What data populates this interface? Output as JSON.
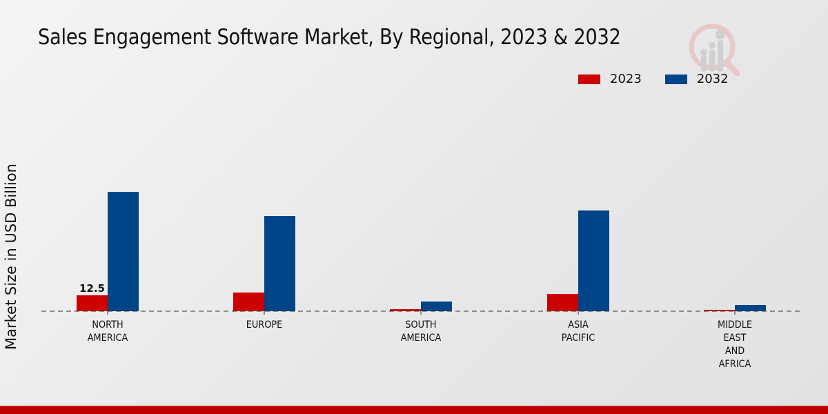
{
  "chart_data": {
    "type": "bar",
    "title": "Sales Engagement Software Market, By Regional, 2023 & 2032",
    "xlabel": "",
    "ylabel": "Market Size in USD Billion",
    "categories": [
      [
        "NORTH",
        "AMERICA"
      ],
      [
        "EUROPE"
      ],
      [
        "SOUTH",
        "AMERICA"
      ],
      [
        "ASIA",
        "PACIFIC"
      ],
      [
        "MIDDLE",
        "EAST",
        "AND",
        "AFRICA"
      ]
    ],
    "series": [
      {
        "name": "2023",
        "color": "#cc0000",
        "values": [
          12.5,
          14.7,
          1.6,
          13.6,
          1.1
        ]
      },
      {
        "name": "2032",
        "color": "#004488",
        "values": [
          94.0,
          75.0,
          7.6,
          79.3,
          4.9
        ]
      }
    ],
    "data_labels": [
      {
        "series": 0,
        "index": 0,
        "text": "12.5"
      }
    ],
    "ylim": [
      0,
      110
    ],
    "grid": false,
    "legend": "top-right"
  },
  "footer": {
    "color": "#c00000"
  }
}
